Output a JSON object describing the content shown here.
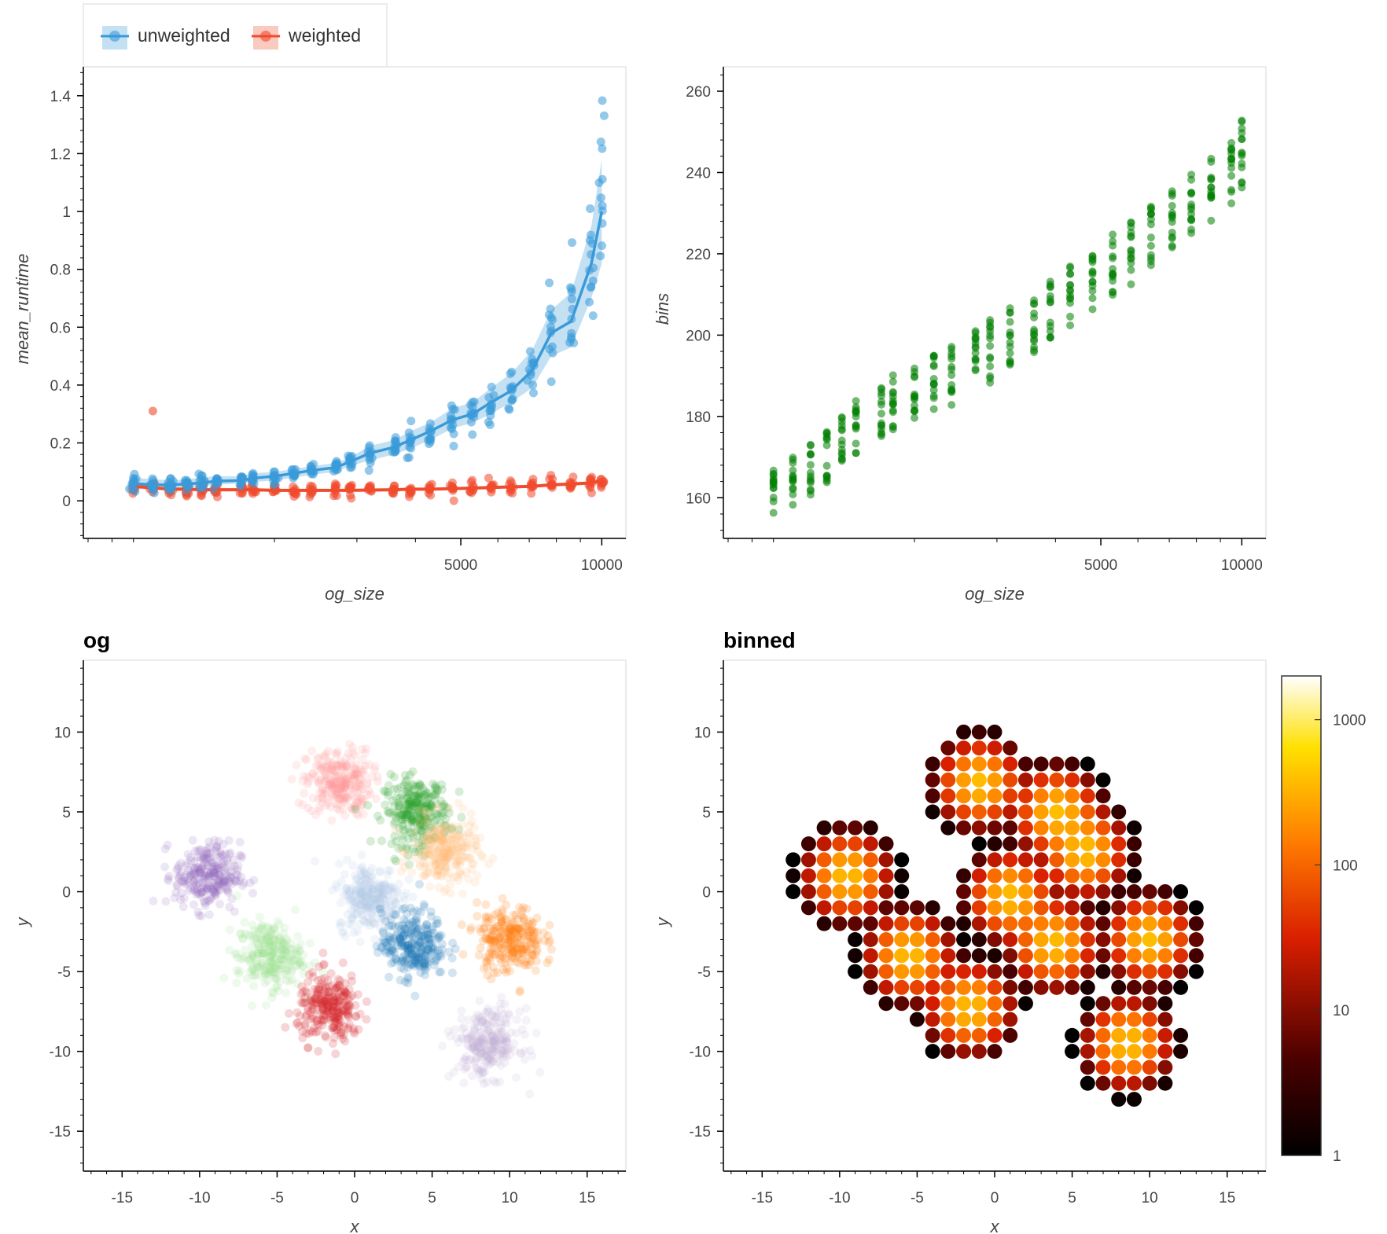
{
  "chart_data": [
    {
      "panel": "runtime",
      "type": "scatter",
      "xlabel": "og_size",
      "ylabel": "mean_runtime",
      "xscale": "log",
      "xlim": [
        800,
        11000
      ],
      "ylim": [
        -0.13,
        1.5
      ],
      "x_ticks": [
        5000,
        10000
      ],
      "y_ticks": [
        0,
        0.2,
        0.4,
        0.6,
        0.8,
        1,
        1.2,
        1.4
      ],
      "x_tick_labels": [
        "5000",
        "10000"
      ],
      "y_tick_labels": [
        "0",
        "0.2",
        "0.4",
        "0.6",
        "0.8",
        "1",
        "1.2",
        "1.4"
      ],
      "legend": {
        "placement": "top-left, outside",
        "entries": [
          "unweighted",
          "weighted"
        ]
      },
      "series": [
        {
          "name": "unweighted",
          "color": "#3a9ad9",
          "x": [
            1000,
            1100,
            1200,
            1300,
            1400,
            1500,
            1700,
            1800,
            2000,
            2200,
            2400,
            2700,
            2900,
            3200,
            3600,
            3900,
            4300,
            4800,
            5300,
            5800,
            6400,
            7100,
            7800,
            8600,
            9500,
            10000
          ],
          "mean": [
            0.06,
            0.055,
            0.055,
            0.058,
            0.062,
            0.068,
            0.07,
            0.078,
            0.085,
            0.095,
            0.105,
            0.115,
            0.135,
            0.165,
            0.185,
            0.21,
            0.24,
            0.28,
            0.3,
            0.34,
            0.38,
            0.45,
            0.58,
            0.62,
            0.82,
            1.0
          ],
          "band_low": [
            0.04,
            0.04,
            0.04,
            0.045,
            0.05,
            0.055,
            0.06,
            0.065,
            0.07,
            0.08,
            0.09,
            0.1,
            0.12,
            0.14,
            0.16,
            0.18,
            0.21,
            0.25,
            0.27,
            0.3,
            0.34,
            0.39,
            0.5,
            0.53,
            0.7,
            0.82
          ],
          "band_high": [
            0.08,
            0.075,
            0.07,
            0.075,
            0.08,
            0.085,
            0.085,
            0.095,
            0.1,
            0.11,
            0.12,
            0.13,
            0.15,
            0.19,
            0.21,
            0.24,
            0.27,
            0.32,
            0.34,
            0.39,
            0.44,
            0.52,
            0.66,
            0.72,
            0.95,
            1.18
          ]
        },
        {
          "name": "weighted",
          "color": "#f04b2d",
          "x": [
            1000,
            1100,
            1200,
            1300,
            1400,
            1500,
            1700,
            1800,
            2000,
            2200,
            2400,
            2700,
            2900,
            3200,
            3600,
            3900,
            4300,
            4800,
            5300,
            5800,
            6400,
            7100,
            7800,
            8600,
            9500,
            10000
          ],
          "mean": [
            0.05,
            0.045,
            0.04,
            0.04,
            0.038,
            0.038,
            0.038,
            0.038,
            0.036,
            0.036,
            0.036,
            0.036,
            0.036,
            0.037,
            0.038,
            0.04,
            0.04,
            0.042,
            0.044,
            0.046,
            0.048,
            0.05,
            0.055,
            0.058,
            0.062,
            0.07
          ],
          "outlier": {
            "x": 1100,
            "y": 0.31
          }
        }
      ]
    },
    {
      "panel": "bins",
      "type": "scatter",
      "xlabel": "og_size",
      "ylabel": "bins",
      "xscale": "log",
      "xlim": [
        800,
        11000
      ],
      "ylim": [
        150,
        266
      ],
      "x_ticks": [
        5000,
        10000
      ],
      "y_ticks": [
        160,
        180,
        200,
        220,
        240,
        260
      ],
      "x_tick_labels": [
        "5000",
        "10000"
      ],
      "y_tick_labels": [
        "160",
        "180",
        "200",
        "220",
        "240",
        "260"
      ],
      "series": [
        {
          "color": "#008000",
          "x": [
            1000,
            1100,
            1200,
            1300,
            1400,
            1500,
            1700,
            1800,
            2000,
            2200,
            2400,
            2700,
            2900,
            3200,
            3600,
            3900,
            4300,
            4800,
            5300,
            5800,
            6400,
            7100,
            7800,
            8600,
            9500,
            10000
          ],
          "center": [
            161,
            164,
            167,
            170,
            174,
            177,
            180,
            183,
            185,
            188,
            190,
            194,
            196,
            199,
            203,
            206,
            210,
            213,
            217,
            220,
            224,
            228,
            232,
            236,
            240,
            245
          ],
          "spread": [
            7,
            7,
            7,
            7,
            7,
            8,
            8,
            8,
            8,
            8,
            8,
            8,
            9,
            9,
            9,
            9,
            9,
            9,
            9,
            9,
            9,
            9,
            9,
            9,
            9,
            10
          ]
        }
      ]
    },
    {
      "panel": "og",
      "title": "og",
      "type": "scatter",
      "xlabel": "x",
      "ylabel": "y",
      "xlim": [
        -17.5,
        17.5
      ],
      "ylim": [
        -17.5,
        14.5
      ],
      "x_ticks": [
        -15,
        -10,
        -5,
        0,
        5,
        10,
        15
      ],
      "y_ticks": [
        -15,
        -10,
        -5,
        0,
        5,
        10
      ],
      "x_tick_labels": [
        "-15",
        "-10",
        "-5",
        "0",
        "5",
        "10",
        "15"
      ],
      "y_tick_labels": [
        "-15",
        "-10",
        "-5",
        "0",
        "5",
        "10"
      ],
      "clusters": [
        {
          "cx": -1.0,
          "cy": 6.8,
          "color": "#ff9896",
          "alpha": 0.3
        },
        {
          "cx": 4.0,
          "cy": 5.0,
          "color": "#2ca02c",
          "alpha": 0.35
        },
        {
          "cx": 5.8,
          "cy": 2.5,
          "color": "#ffbb78",
          "alpha": 0.3
        },
        {
          "cx": -9.5,
          "cy": 1.0,
          "color": "#9467bd",
          "alpha": 0.3
        },
        {
          "cx": 1.0,
          "cy": -0.3,
          "color": "#aec7e8",
          "alpha": 0.3
        },
        {
          "cx": -5.5,
          "cy": -4.0,
          "color": "#98df8a",
          "alpha": 0.3
        },
        {
          "cx": 3.8,
          "cy": -3.3,
          "color": "#1f77b4",
          "alpha": 0.35
        },
        {
          "cx": 10.0,
          "cy": -3.0,
          "color": "#ff7f0e",
          "alpha": 0.35
        },
        {
          "cx": -1.6,
          "cy": -7.3,
          "color": "#d62728",
          "alpha": 0.35
        },
        {
          "cx": 8.6,
          "cy": -9.5,
          "color": "#c5b0d5",
          "alpha": 0.3
        }
      ]
    },
    {
      "panel": "binned",
      "title": "binned",
      "type": "scatter",
      "xlabel": "x",
      "ylabel": "y",
      "xlim": [
        -17.5,
        17.5
      ],
      "ylim": [
        -17.5,
        14.5
      ],
      "x_ticks": [
        -15,
        -10,
        -5,
        0,
        5,
        10,
        15
      ],
      "y_ticks": [
        -15,
        -10,
        -5,
        0,
        5,
        10
      ],
      "x_tick_labels": [
        "-15",
        "-10",
        "-5",
        "0",
        "5",
        "10",
        "15"
      ],
      "y_tick_labels": [
        "-15",
        "-10",
        "-5",
        "0",
        "5",
        "10"
      ],
      "grid_step": 1,
      "colorbar": {
        "scale": "log",
        "range": [
          1,
          2000
        ],
        "ticks": [
          1,
          10,
          100,
          1000
        ],
        "tick_labels": [
          "1",
          "10",
          "100",
          "1000"
        ],
        "colormap": "fire"
      },
      "clusters": [
        {
          "cx": -1.0,
          "cy": 6.8
        },
        {
          "cx": 4.0,
          "cy": 5.0
        },
        {
          "cx": 5.8,
          "cy": 2.5
        },
        {
          "cx": -9.5,
          "cy": 1.0
        },
        {
          "cx": 1.0,
          "cy": -0.3
        },
        {
          "cx": -5.5,
          "cy": -4.0
        },
        {
          "cx": 3.8,
          "cy": -3.3
        },
        {
          "cx": 10.0,
          "cy": -3.0
        },
        {
          "cx": -1.6,
          "cy": -7.3
        },
        {
          "cx": 8.6,
          "cy": -9.5
        }
      ]
    }
  ]
}
